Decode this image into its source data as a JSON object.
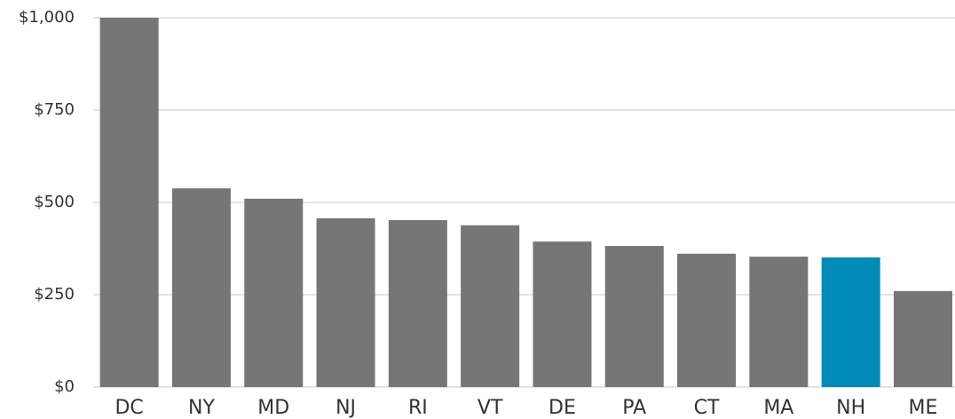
{
  "chart_data": {
    "type": "bar",
    "categories": [
      "DC",
      "NY",
      "MD",
      "NJ",
      "RI",
      "VT",
      "DE",
      "PA",
      "CT",
      "MA",
      "NH",
      "ME"
    ],
    "values": [
      1000,
      538,
      510,
      457,
      452,
      438,
      394,
      382,
      361,
      353,
      351,
      260
    ],
    "colors": [
      "#767676",
      "#767676",
      "#767676",
      "#767676",
      "#767676",
      "#767676",
      "#767676",
      "#767676",
      "#767676",
      "#767676",
      "#008ab8",
      "#767676"
    ],
    "ylim": [
      0,
      1000
    ],
    "yticks": [
      {
        "value": 0,
        "label": "$0"
      },
      {
        "value": 250,
        "label": "$250"
      },
      {
        "value": 500,
        "label": "$500"
      },
      {
        "value": 750,
        "label": "$750"
      },
      {
        "value": 1000,
        "label": "$1,000"
      }
    ],
    "grid": true
  }
}
